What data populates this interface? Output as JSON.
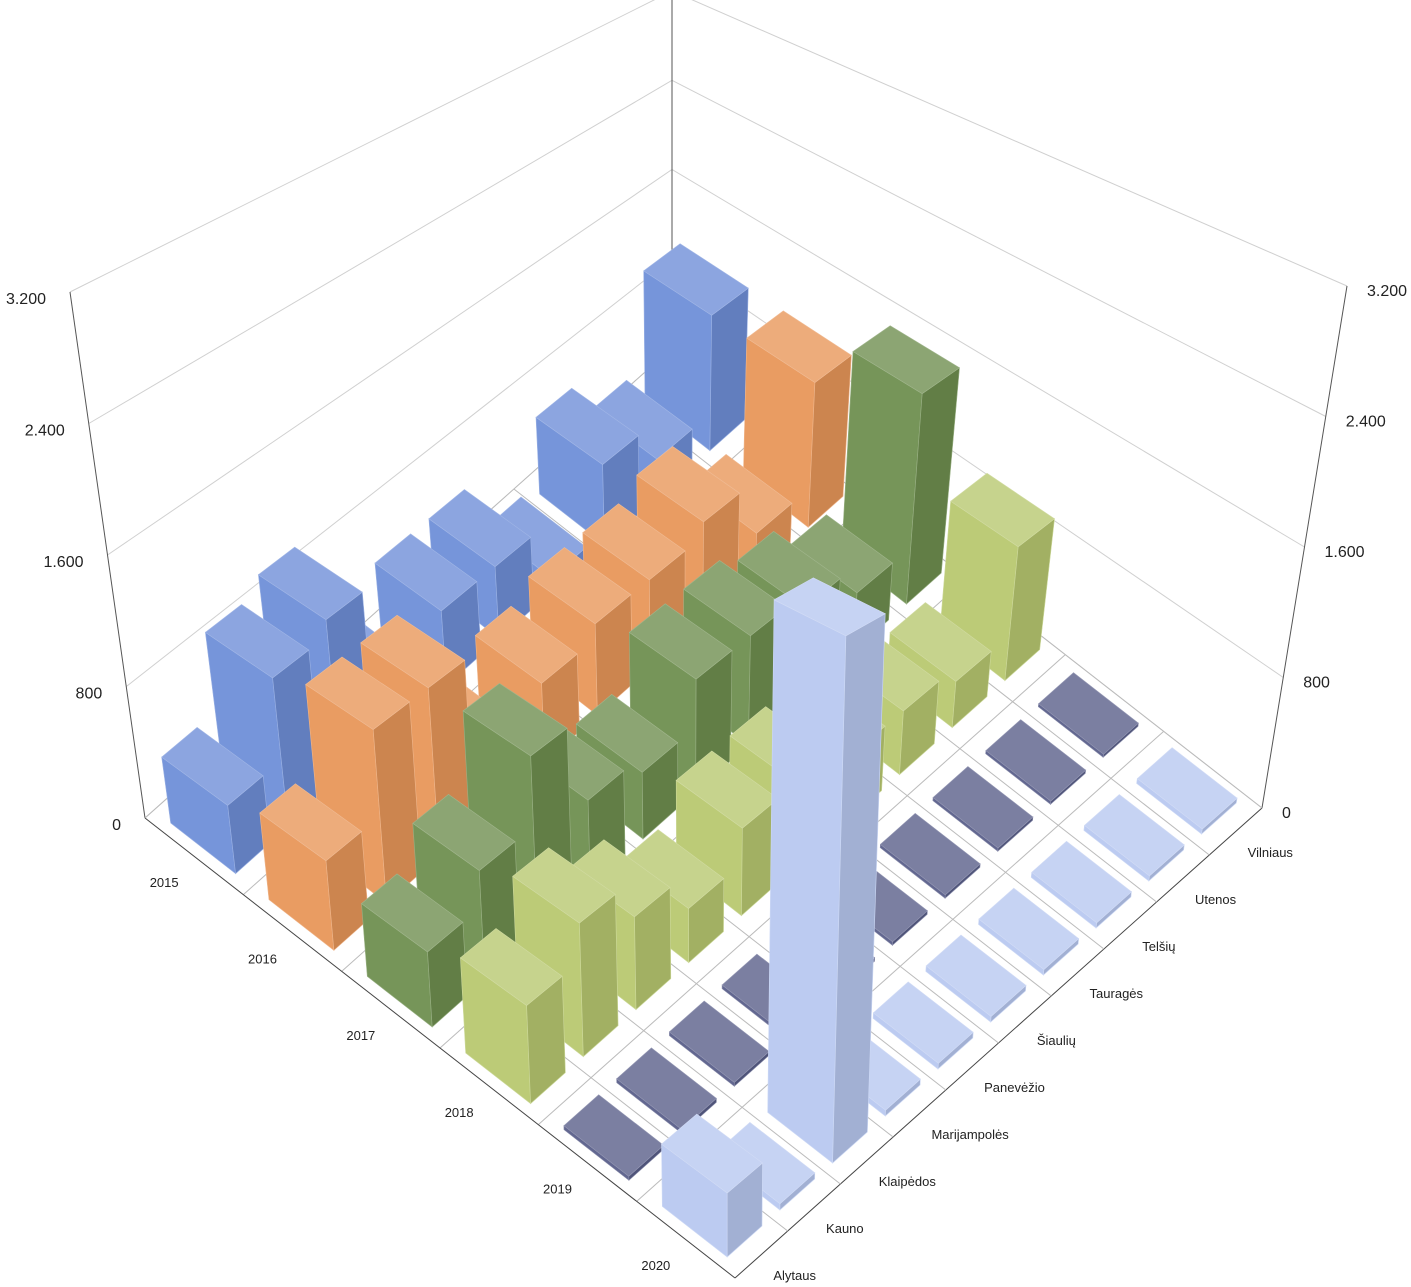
{
  "chart_data": {
    "type": "bar3d",
    "categories": [
      "Alytaus",
      "Kauno",
      "Klaipėdos",
      "Marijampolės",
      "Panevėžio",
      "Šiaulių",
      "Tauragės",
      "Telšių",
      "Utenos",
      "Vilniaus"
    ],
    "series": [
      {
        "name": "2015",
        "color": "#6f8fd8",
        "values": [
          400,
          900,
          1000,
          200,
          500,
          500,
          100,
          600,
          300,
          1100
        ]
      },
      {
        "name": "2016",
        "color": "#e8975a",
        "values": [
          500,
          1000,
          1000,
          300,
          500,
          600,
          600,
          700,
          300,
          1100
        ]
      },
      {
        "name": "2017",
        "color": "#6f8f50",
        "values": [
          400,
          600,
          1000,
          500,
          400,
          700,
          700,
          600,
          400,
          1500
        ]
      },
      {
        "name": "2018",
        "color": "#b8c870",
        "values": [
          500,
          700,
          500,
          300,
          500,
          500,
          400,
          400,
          300,
          900
        ]
      },
      {
        "name": "2019",
        "color": "#5a5f8a",
        "values": [
          20,
          20,
          20,
          20,
          20,
          20,
          20,
          20,
          20,
          20
        ]
      },
      {
        "name": "2020",
        "color": "#b8c8f0",
        "values": [
          300,
          30,
          2600,
          30,
          30,
          30,
          30,
          30,
          30,
          30
        ]
      }
    ],
    "ylim": [
      0,
      3200
    ],
    "yticks": [
      0,
      800,
      {
        "value": 1600,
        "label": "1.600"
      },
      {
        "value": 2400,
        "label": "2.400"
      },
      {
        "value": 3200,
        "label": "3.200"
      }
    ],
    "grid": true
  }
}
